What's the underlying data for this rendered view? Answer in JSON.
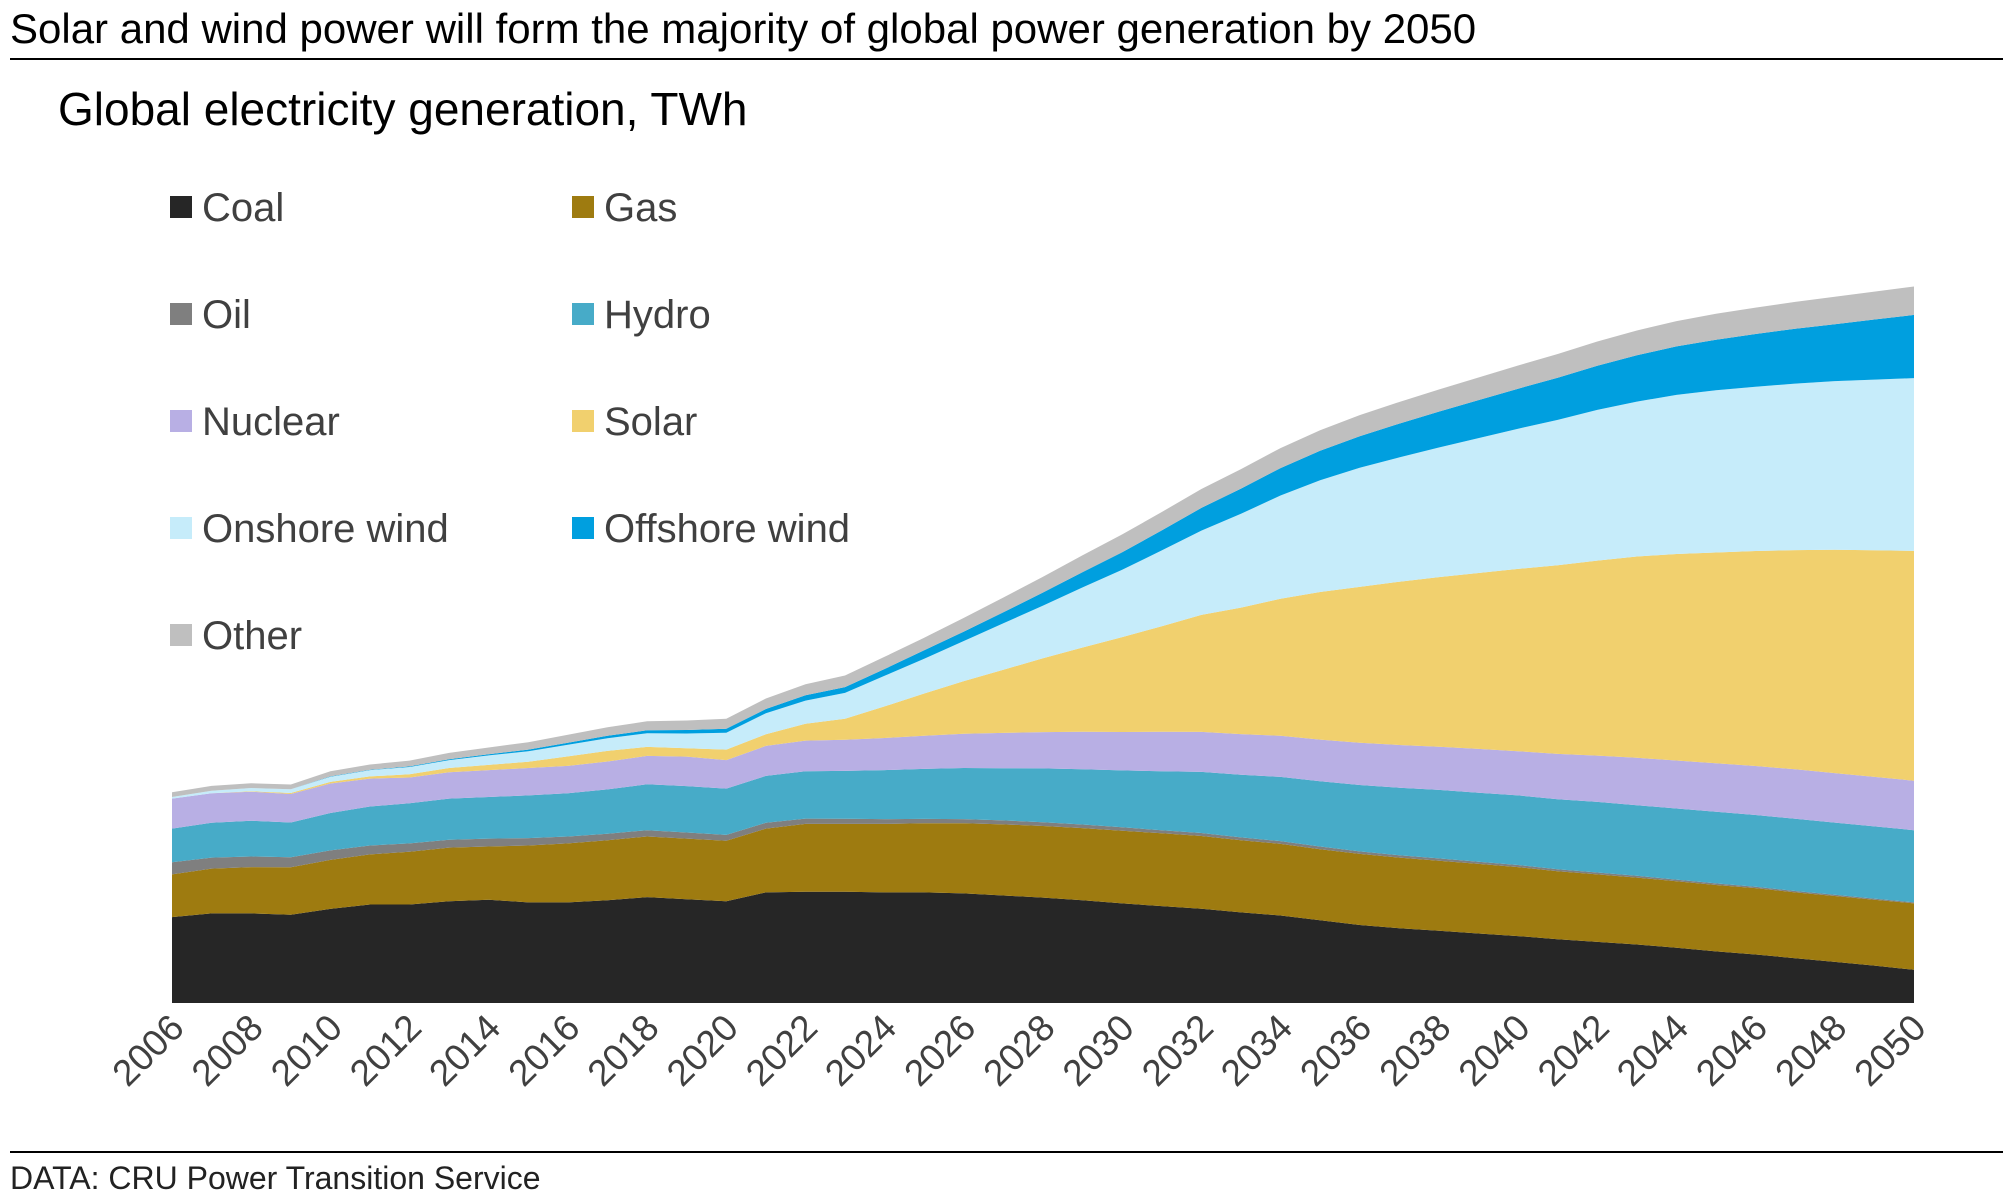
{
  "header": {
    "title": "Solar and wind power will form the majority of global power generation by 2050"
  },
  "footer": {
    "source": "DATA: CRU Power Transition Service"
  },
  "chart_data": {
    "type": "area",
    "stacked": true,
    "title": "Solar and wind power will form the majority of global power generation by 2050",
    "subtitle": "Global electricity generation, TWh",
    "xlabel": "",
    "ylabel": "",
    "grid": false,
    "legend_position": "top-left",
    "x": [
      2006,
      2007,
      2008,
      2009,
      2010,
      2011,
      2012,
      2013,
      2014,
      2015,
      2016,
      2017,
      2018,
      2019,
      2020,
      2021,
      2022,
      2023,
      2024,
      2025,
      2026,
      2027,
      2028,
      2029,
      2030,
      2031,
      2032,
      2033,
      2034,
      2035,
      2036,
      2037,
      2038,
      2039,
      2040,
      2041,
      2042,
      2043,
      2044,
      2045,
      2046,
      2047,
      2048,
      2049,
      2050
    ],
    "tick_labels": [
      "2006",
      "2008",
      "2010",
      "2012",
      "2014",
      "2016",
      "2018",
      "2020",
      "2022",
      "2024",
      "2026",
      "2028",
      "2030",
      "2032",
      "2034",
      "2036",
      "2038",
      "2040",
      "2042",
      "2044",
      "2046",
      "2048",
      "2050"
    ],
    "ylim": [
      0,
      80000
    ],
    "series": [
      {
        "name": "Coal",
        "color": "#262626",
        "values": [
          8150,
          8500,
          8500,
          8380,
          8930,
          9350,
          9350,
          9650,
          9800,
          9550,
          9550,
          9750,
          10050,
          9850,
          9650,
          10500,
          10550,
          10550,
          10500,
          10500,
          10400,
          10200,
          10000,
          9750,
          9450,
          9200,
          8950,
          8600,
          8300,
          7850,
          7400,
          7100,
          6850,
          6600,
          6350,
          6050,
          5800,
          5550,
          5250,
          4900,
          4600,
          4250,
          3900,
          3550,
          3150
        ]
      },
      {
        "name": "Gas",
        "color": "#9E7B10",
        "values": [
          4050,
          4250,
          4400,
          4500,
          4650,
          4750,
          5000,
          5100,
          5050,
          5400,
          5600,
          5700,
          5750,
          5750,
          5750,
          6050,
          6450,
          6450,
          6500,
          6550,
          6650,
          6750,
          6800,
          6850,
          6900,
          6900,
          6900,
          6850,
          6800,
          6750,
          6750,
          6700,
          6650,
          6600,
          6550,
          6450,
          6400,
          6350,
          6300,
          6300,
          6300,
          6250,
          6250,
          6250,
          6300
        ]
      },
      {
        "name": "Oil",
        "color": "#7F7F7F",
        "values": [
          1150,
          1050,
          1000,
          950,
          900,
          850,
          800,
          750,
          750,
          700,
          650,
          620,
          600,
          580,
          550,
          550,
          500,
          480,
          450,
          420,
          400,
          380,
          360,
          340,
          320,
          300,
          280,
          270,
          260,
          250,
          240,
          230,
          220,
          210,
          200,
          190,
          180,
          170,
          160,
          150,
          140,
          130,
          120,
          110,
          100
        ]
      },
      {
        "name": "Hydro",
        "color": "#47ABC8",
        "values": [
          3200,
          3300,
          3400,
          3300,
          3550,
          3700,
          3800,
          3900,
          3950,
          4050,
          4100,
          4200,
          4350,
          4400,
          4400,
          4450,
          4500,
          4550,
          4650,
          4750,
          4850,
          4950,
          5100,
          5250,
          5400,
          5600,
          5800,
          5950,
          6100,
          6200,
          6300,
          6400,
          6500,
          6550,
          6600,
          6650,
          6700,
          6700,
          6750,
          6800,
          6800,
          6850,
          6850,
          6850,
          6850
        ]
      },
      {
        "name": "Nuclear",
        "color": "#B8AFE4",
        "values": [
          2850,
          2800,
          2750,
          2700,
          2800,
          2650,
          2450,
          2500,
          2550,
          2600,
          2600,
          2650,
          2700,
          2800,
          2700,
          2850,
          2900,
          2950,
          3050,
          3150,
          3250,
          3350,
          3450,
          3550,
          3650,
          3750,
          3800,
          3850,
          3900,
          3950,
          4000,
          4050,
          4100,
          4150,
          4200,
          4300,
          4400,
          4500,
          4550,
          4600,
          4650,
          4700,
          4700,
          4700,
          4700
        ]
      },
      {
        "name": "Solar",
        "color": "#F1D06E",
        "values": [
          0,
          0,
          50,
          100,
          150,
          200,
          300,
          400,
          500,
          600,
          900,
          1000,
          850,
          800,
          1000,
          1100,
          1600,
          2000,
          3000,
          4000,
          5000,
          6000,
          7000,
          8000,
          9000,
          10000,
          11100,
          12000,
          13000,
          14000,
          14800,
          15500,
          16100,
          16700,
          17300,
          17900,
          18500,
          19100,
          19600,
          20000,
          20400,
          20800,
          21200,
          21500,
          21800
        ]
      },
      {
        "name": "Onshore wind",
        "color": "#C6ECFA",
        "values": [
          150,
          250,
          300,
          350,
          500,
          600,
          700,
          750,
          900,
          1000,
          1100,
          1200,
          1300,
          1400,
          1600,
          2000,
          2200,
          2450,
          2900,
          3300,
          3800,
          4400,
          5000,
          5700,
          6400,
          7200,
          8000,
          8900,
          9800,
          10600,
          11300,
          11800,
          12300,
          12800,
          13300,
          13800,
          14300,
          14700,
          15100,
          15400,
          15600,
          15800,
          16000,
          16200,
          16400
        ]
      },
      {
        "name": "Offshore wind",
        "color": "#009FDF",
        "values": [
          0,
          0,
          0,
          10,
          20,
          30,
          50,
          80,
          100,
          150,
          200,
          250,
          280,
          330,
          380,
          400,
          500,
          550,
          650,
          800,
          900,
          1050,
          1250,
          1450,
          1650,
          1900,
          2150,
          2400,
          2600,
          2800,
          3000,
          3200,
          3400,
          3600,
          3800,
          4000,
          4200,
          4400,
          4600,
          4800,
          5000,
          5200,
          5400,
          5700,
          6000
        ]
      },
      {
        "name": "Other",
        "color": "#BFBFBF",
        "values": [
          450,
          450,
          450,
          450,
          500,
          500,
          550,
          600,
          650,
          700,
          750,
          800,
          850,
          900,
          950,
          1000,
          1050,
          1100,
          1150,
          1200,
          1300,
          1400,
          1500,
          1600,
          1700,
          1750,
          1800,
          1850,
          1900,
          1950,
          2000,
          2050,
          2100,
          2150,
          2200,
          2250,
          2300,
          2350,
          2400,
          2450,
          2500,
          2550,
          2600,
          2650,
          2700
        ]
      }
    ]
  }
}
